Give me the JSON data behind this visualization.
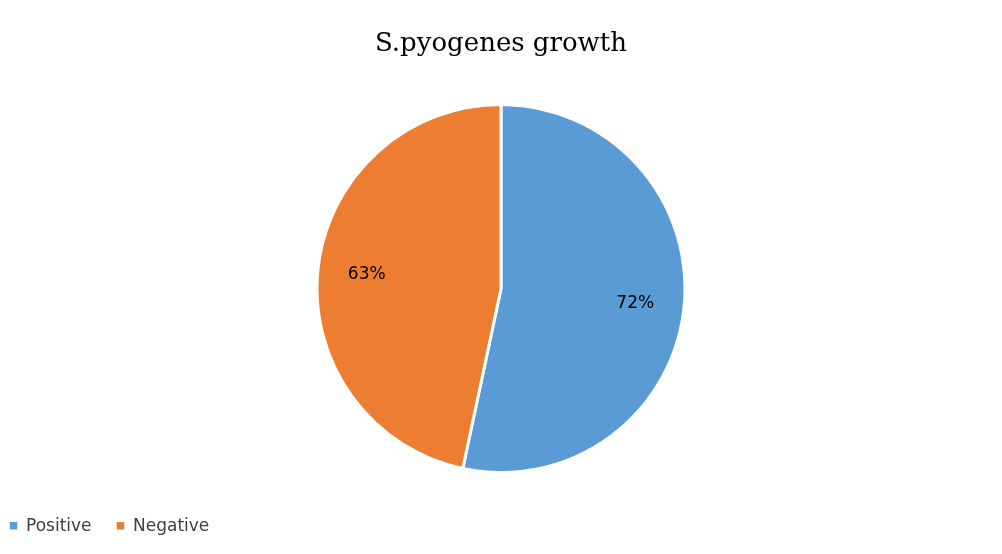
{
  "chart_data": {
    "type": "pie",
    "title": "S.pyogenes growth",
    "categories": [
      "Positive",
      "Negative"
    ],
    "values": [
      72,
      63
    ],
    "colors": [
      "#5b9bd5",
      "#ed7d31"
    ],
    "value_labels": [
      "72%",
      "63%"
    ],
    "legend": "bottom"
  }
}
